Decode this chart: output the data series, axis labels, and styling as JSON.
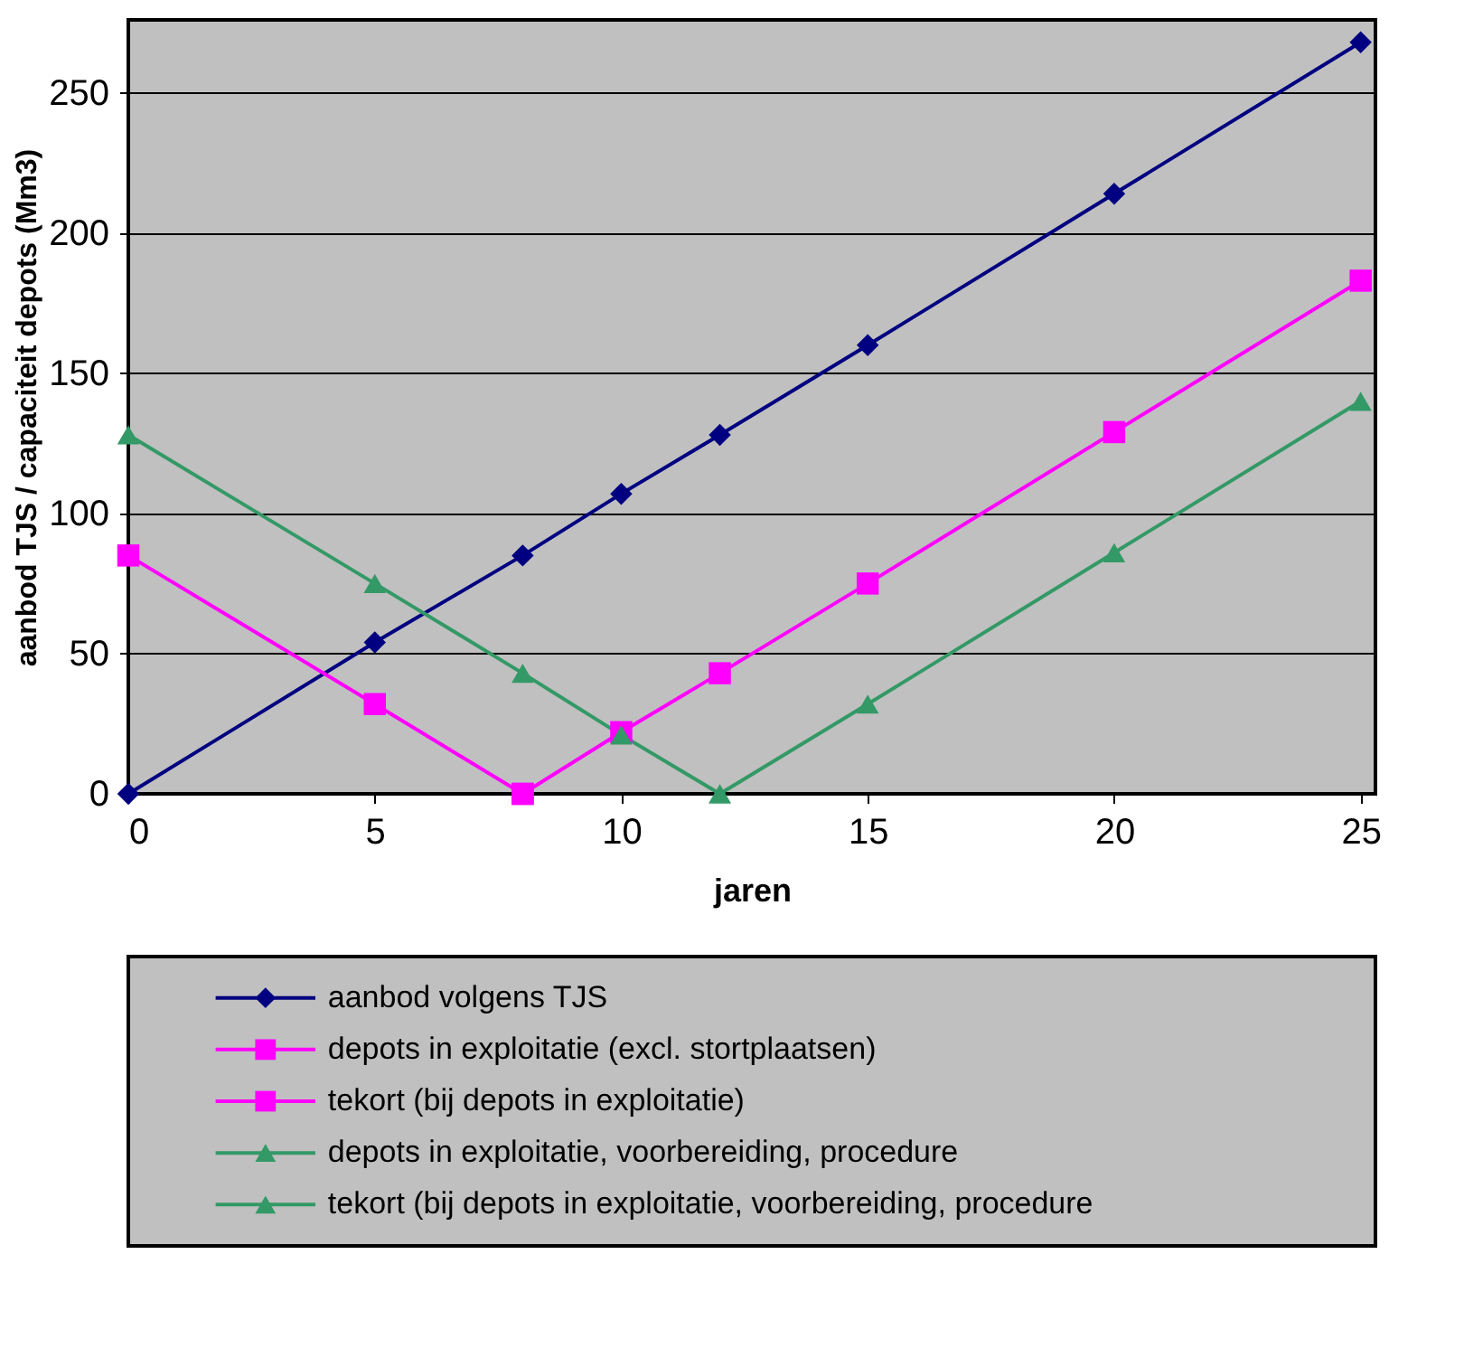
{
  "chart_data": {
    "type": "line",
    "xlabel": "jaren",
    "ylabel": "aanbod TJS / capaciteit depots (Mm3)",
    "xlim": [
      0,
      25.3
    ],
    "xticks": [
      0,
      5,
      10,
      15,
      20,
      25
    ],
    "ylim": [
      0,
      276
    ],
    "yticks": [
      0,
      50,
      100,
      150,
      200,
      250
    ],
    "grid": "y",
    "legend": "bottom",
    "line_style": "solid",
    "series": [
      {
        "name": "aanbod volgens TJS",
        "color": "#000080",
        "marker": "diamond",
        "x": [
          0,
          5,
          8,
          10,
          12,
          15,
          20,
          25
        ],
        "values": [
          0,
          54,
          85,
          107,
          128,
          160,
          214,
          268
        ]
      },
      {
        "name": "depots in exploitatie (excl. stortplaatsen)",
        "color": "#ff00ff",
        "marker": "square",
        "x": [
          0,
          5,
          8
        ],
        "values": [
          85,
          32,
          0
        ]
      },
      {
        "name": "tekort (bij depots in exploitatie)",
        "color": "#ff00ff",
        "marker": "square",
        "x": [
          8,
          10,
          12,
          15,
          20,
          25
        ],
        "values": [
          0,
          22,
          43,
          75,
          129,
          183
        ]
      },
      {
        "name": "depots in exploitatie, voorbereiding, procedure",
        "color": "#339966",
        "marker": "triangle",
        "x": [
          0,
          5,
          8,
          10,
          12
        ],
        "values": [
          128,
          75,
          43,
          21,
          0
        ]
      },
      {
        "name": "tekort (bij depots in exploitatie, voorbereiding, procedure",
        "color": "#339966",
        "marker": "triangle",
        "x": [
          12,
          15,
          20,
          25
        ],
        "values": [
          0,
          32,
          86,
          140
        ]
      }
    ]
  }
}
